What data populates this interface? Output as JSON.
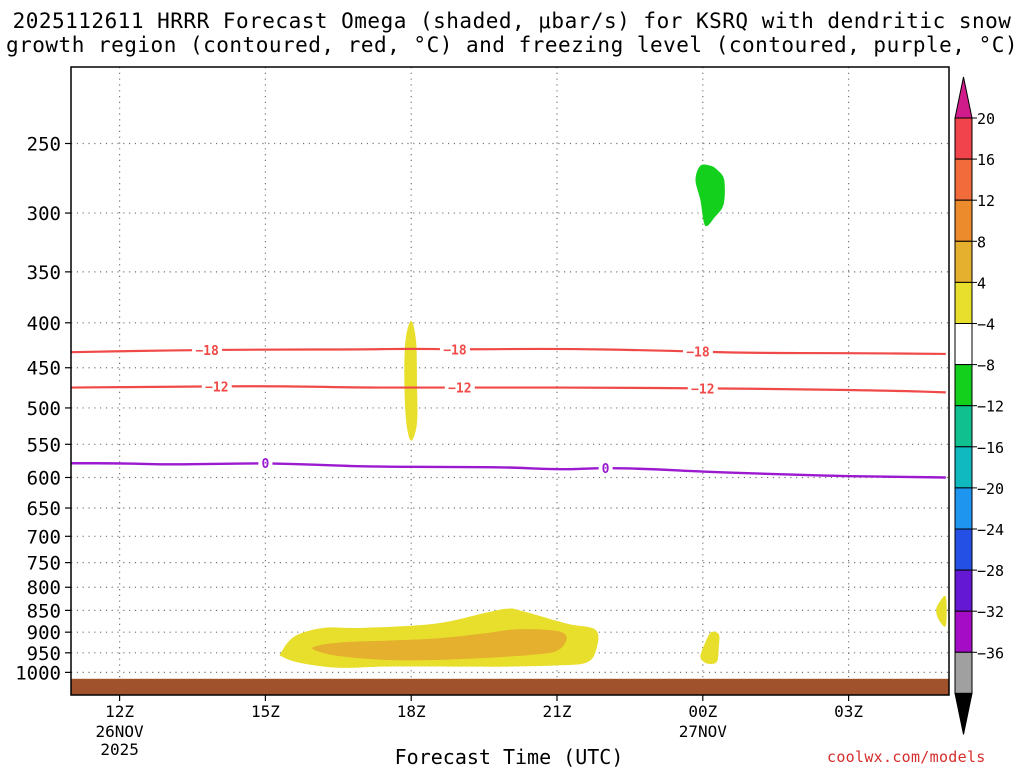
{
  "header": {
    "title_line1": "2025112611 HRRR Forecast Omega (shaded, μbar/s) for KSRQ with dendritic snow",
    "title_line2": "growth region (contoured, red, °C) and freezing level (contoured, purple, °C)"
  },
  "credit": "coolwx.com/models",
  "chart_data": {
    "type": "heatmap",
    "title": "2025112611 HRRR Forecast Omega (shaded, μbar/s) for KSRQ with dendritic snow growth region (contoured, red, °C) and freezing level (contoured, purple, °C)",
    "xlabel": "Forecast Time (UTC)",
    "ylabel": "",
    "x_unit": "forecast hour (hours after 2025-11-26 11Z)",
    "xlim": [
      0,
      18
    ],
    "x_ticks": [
      {
        "x": 1,
        "label": "12Z",
        "sub1": "26NOV",
        "sub2": "2025"
      },
      {
        "x": 4,
        "label": "15Z",
        "sub1": "",
        "sub2": ""
      },
      {
        "x": 7,
        "label": "18Z",
        "sub1": "",
        "sub2": ""
      },
      {
        "x": 10,
        "label": "21Z",
        "sub1": "",
        "sub2": ""
      },
      {
        "x": 13,
        "label": "00Z",
        "sub1": "27NOV",
        "sub2": ""
      },
      {
        "x": 16,
        "label": "03Z",
        "sub1": "",
        "sub2": ""
      }
    ],
    "y_scale": "log",
    "ylim": [
      1030,
      200
    ],
    "y_ticks": [
      250,
      300,
      350,
      400,
      450,
      500,
      550,
      600,
      650,
      700,
      750,
      800,
      850,
      900,
      950,
      1000
    ],
    "grid": true,
    "surface_pressure": 1017,
    "colorbar": {
      "label": "μbar/s",
      "levels": [
        "20",
        "16",
        "12",
        "8",
        "4",
        "−4",
        "−8",
        "−12",
        "−16",
        "−20",
        "−24",
        "−28",
        "−32",
        "−36"
      ],
      "bins": [
        {
          "color": "#d01c8b"
        },
        {
          "color": "#f0434b"
        },
        {
          "color": "#f26b3a"
        },
        {
          "color": "#ec8b2c"
        },
        {
          "color": "#e4b02e"
        },
        {
          "color": "#e8df2c"
        },
        {
          "color": "#ffffff"
        },
        {
          "color": "#12d01b"
        },
        {
          "color": "#10c08e"
        },
        {
          "color": "#10b8c0"
        },
        {
          "color": "#1e96f0"
        },
        {
          "color": "#2450e6"
        },
        {
          "color": "#6418d4"
        },
        {
          "color": "#a40cc6"
        },
        {
          "color": "#a0a0a0"
        },
        {
          "color": "#000000"
        }
      ]
    },
    "omega_regions": [
      {
        "omega_min": -8,
        "omega_max": -4,
        "color": "#12d01b",
        "polygon": [
          [
            13.16,
            265
          ],
          [
            13.3,
            268
          ],
          [
            13.44,
            275
          ],
          [
            13.43,
            293
          ],
          [
            13.25,
            303
          ],
          [
            13.05,
            310
          ],
          [
            12.95,
            290
          ],
          [
            12.85,
            275
          ],
          [
            12.95,
            265
          ]
        ]
      },
      {
        "omega_min": 4,
        "omega_max": 8,
        "color": "#e8df2c",
        "polygon": [
          [
            7.0,
            398
          ],
          [
            7.1,
            420
          ],
          [
            7.12,
            470
          ],
          [
            7.12,
            520
          ],
          [
            7.0,
            545
          ],
          [
            6.9,
            520
          ],
          [
            6.86,
            470
          ],
          [
            6.88,
            420
          ]
        ]
      },
      {
        "omega_min": 4,
        "omega_max": 8,
        "color": "#e8df2c",
        "polygon": [
          [
            4.32,
            950
          ],
          [
            4.6,
            910
          ],
          [
            5.2,
            890
          ],
          [
            6.0,
            890
          ],
          [
            7.5,
            880
          ],
          [
            8.5,
            856
          ],
          [
            9.0,
            846
          ],
          [
            9.3,
            852
          ],
          [
            10.2,
            880
          ],
          [
            10.8,
            895
          ],
          [
            10.8,
            945
          ],
          [
            10.6,
            975
          ],
          [
            10.0,
            982
          ],
          [
            9.0,
            985
          ],
          [
            8.0,
            985
          ],
          [
            6.5,
            985
          ],
          [
            5.5,
            988
          ],
          [
            4.7,
            975
          ],
          [
            4.35,
            960
          ]
        ]
      },
      {
        "omega_min": 8,
        "omega_max": 12,
        "color": "#e4b02e",
        "polygon": [
          [
            5.0,
            935
          ],
          [
            5.5,
            925
          ],
          [
            6.5,
            920
          ],
          [
            7.5,
            915
          ],
          [
            8.5,
            903
          ],
          [
            9.2,
            893
          ],
          [
            10.0,
            897
          ],
          [
            10.2,
            915
          ],
          [
            10.0,
            945
          ],
          [
            9.5,
            955
          ],
          [
            8.5,
            963
          ],
          [
            7.5,
            968
          ],
          [
            6.5,
            968
          ],
          [
            5.5,
            958
          ],
          [
            5.05,
            945
          ]
        ]
      },
      {
        "omega_min": 4,
        "omega_max": 8,
        "color": "#e8df2c",
        "polygon": [
          [
            13.17,
            900
          ],
          [
            13.33,
            905
          ],
          [
            13.33,
            935
          ],
          [
            13.3,
            970
          ],
          [
            13.2,
            978
          ],
          [
            13.05,
            975
          ],
          [
            12.95,
            960
          ],
          [
            13.05,
            925
          ]
        ]
      },
      {
        "omega_min": 4,
        "omega_max": 8,
        "color": "#e8df2c",
        "polygon": [
          [
            18.0,
            820
          ],
          [
            17.85,
            835
          ],
          [
            17.8,
            850
          ],
          [
            17.85,
            870
          ],
          [
            18.0,
            885
          ]
        ]
      }
    ],
    "contours": [
      {
        "name": "-18",
        "color": "#f04a48",
        "width": 2.2,
        "label": "−18",
        "label_x": [
          2.8,
          7.9,
          12.9
        ],
        "points": [
          [
            0,
            432
          ],
          [
            2,
            430
          ],
          [
            4,
            429
          ],
          [
            6,
            429
          ],
          [
            7,
            428
          ],
          [
            8,
            429
          ],
          [
            10,
            428
          ],
          [
            12,
            430
          ],
          [
            14,
            433
          ],
          [
            16,
            433
          ],
          [
            18,
            434
          ]
        ]
      },
      {
        "name": "-12",
        "color": "#f04a48",
        "width": 2.2,
        "label": "−12",
        "label_x": [
          3.0,
          8.0,
          13.0
        ],
        "points": [
          [
            0,
            474
          ],
          [
            2,
            473
          ],
          [
            4,
            472
          ],
          [
            6,
            474
          ],
          [
            7,
            474
          ],
          [
            9,
            474
          ],
          [
            11,
            474
          ],
          [
            13,
            475
          ],
          [
            15,
            476
          ],
          [
            17,
            478
          ],
          [
            18,
            480
          ]
        ]
      },
      {
        "name": "0",
        "color": "#9b19cf",
        "width": 2.4,
        "label": "0",
        "label_x": [
          4.0,
          11.0
        ],
        "points": [
          [
            0,
            578
          ],
          [
            1,
            578
          ],
          [
            2,
            580
          ],
          [
            3,
            579
          ],
          [
            4,
            578
          ],
          [
            5,
            580
          ],
          [
            6,
            583
          ],
          [
            8,
            584
          ],
          [
            9,
            584
          ],
          [
            10,
            588
          ],
          [
            11,
            585
          ],
          [
            12,
            587
          ],
          [
            13,
            591
          ],
          [
            15,
            596
          ],
          [
            16,
            598
          ],
          [
            18,
            600
          ]
        ]
      }
    ]
  }
}
